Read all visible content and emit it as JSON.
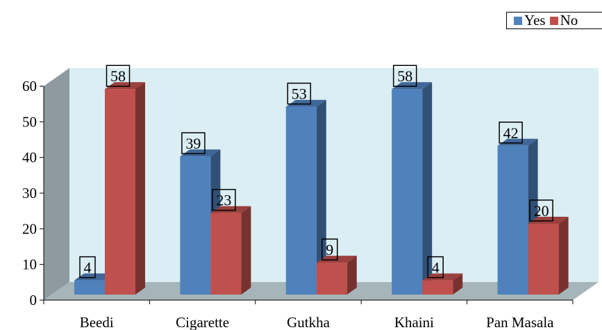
{
  "chart_data": {
    "type": "bar",
    "categories": [
      "Beedi",
      "Cigarette",
      "Gutkha",
      "Khaini",
      "Pan Masala"
    ],
    "series": [
      {
        "name": "Yes",
        "values": [
          4,
          39,
          53,
          58,
          42
        ],
        "color": "#4F81BD"
      },
      {
        "name": "No",
        "values": [
          58,
          23,
          9,
          4,
          20
        ],
        "color": "#C0504D"
      }
    ],
    "ylim": [
      0,
      60
    ],
    "yticks": [
      0,
      10,
      20,
      30,
      40,
      50,
      60
    ],
    "grid": false,
    "legend_position": "top-right",
    "data_labels": true,
    "style": "3d-clustered-column",
    "wall_color": "#DAEEF3",
    "floor_color": "#A6B5B9"
  }
}
